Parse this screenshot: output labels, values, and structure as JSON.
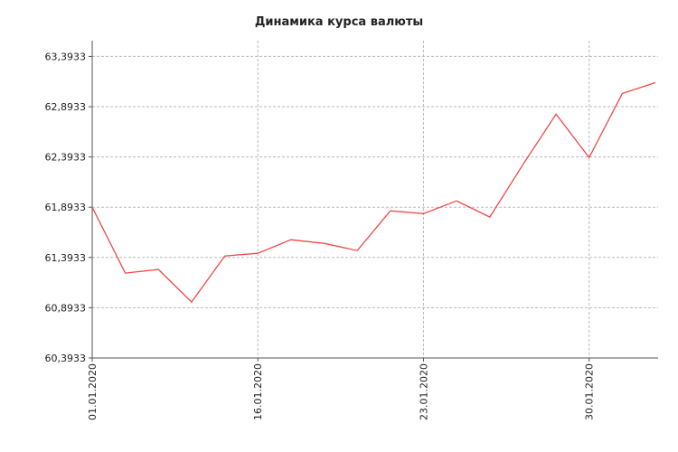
{
  "chart_data": {
    "type": "line",
    "title": "Динамика курса валюты",
    "categories": [
      "01.01.2020",
      null,
      null,
      null,
      null,
      "16.01.2020",
      null,
      null,
      null,
      null,
      "23.01.2020",
      null,
      null,
      null,
      null,
      "30.01.2020",
      null,
      null
    ],
    "series": [
      {
        "color": "#f04848",
        "values": [
          61.893,
          61.238,
          61.274,
          60.95,
          61.408,
          61.435,
          61.57,
          61.534,
          61.462,
          61.857,
          61.83,
          61.956,
          61.795,
          62.316,
          62.819,
          62.387,
          63.025,
          63.133
        ]
      }
    ],
    "ylim": [
      60.3933,
      63.55
    ],
    "yticks": [
      {
        "value": 60.3933,
        "label": "60,3933"
      },
      {
        "value": 60.8933,
        "label": "60,8933"
      },
      {
        "value": 61.3933,
        "label": "61,3933"
      },
      {
        "value": 61.8933,
        "label": "61,8933"
      },
      {
        "value": 62.3933,
        "label": "62,3933"
      },
      {
        "value": 62.8933,
        "label": "62,8933"
      },
      {
        "value": 63.3933,
        "label": "63,3933"
      }
    ],
    "grid": true
  }
}
